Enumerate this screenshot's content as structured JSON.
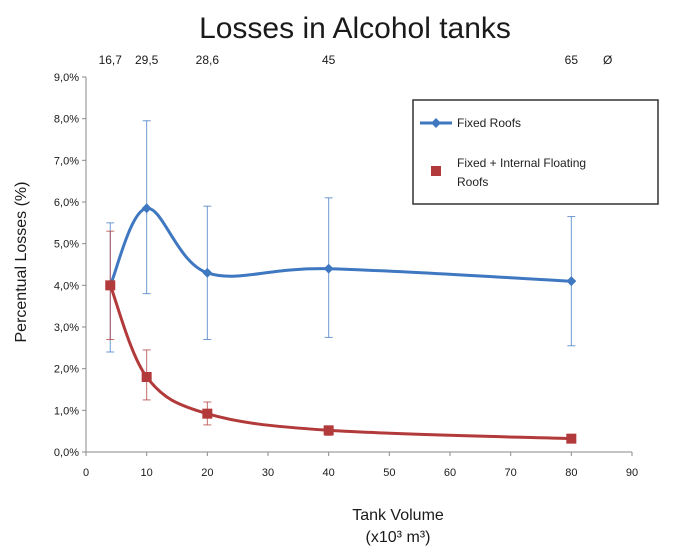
{
  "chart_data": {
    "type": "scatter",
    "title": "Losses in Alcohol tanks",
    "xlabel": [
      "Tank Volume",
      "(x10³ m³)"
    ],
    "ylabel": "Percentual Losses (%)",
    "xlim": [
      0,
      90
    ],
    "ylim": [
      0,
      9
    ],
    "x_ticks": [
      "0",
      "10",
      "20",
      "30",
      "40",
      "50",
      "60",
      "70",
      "80",
      "90"
    ],
    "y_ticks": [
      "0,0%",
      "1,0%",
      "2,0%",
      "3,0%",
      "4,0%",
      "5,0%",
      "6,0%",
      "7,0%",
      "8,0%",
      "9,0%"
    ],
    "top_labels": [
      {
        "x": 4,
        "text": "16,7"
      },
      {
        "x": 10,
        "text": "29,5"
      },
      {
        "x": 20,
        "text": "28,6"
      },
      {
        "x": 40,
        "text": "45"
      },
      {
        "x": 80,
        "text": "65"
      },
      {
        "x": 86,
        "text": "Ø"
      }
    ],
    "legend_position": "top-right",
    "series": [
      {
        "name": "Fixed Roofs",
        "color": "#3f78c1",
        "marker": "diamond",
        "line": "smooth",
        "points": [
          {
            "x": 4,
            "y": 4.0,
            "err_low": 2.4,
            "err_high": 5.5
          },
          {
            "x": 10,
            "y": 5.85,
            "err_low": 3.8,
            "err_high": 7.95
          },
          {
            "x": 20,
            "y": 4.3,
            "err_low": 2.7,
            "err_high": 5.9
          },
          {
            "x": 40,
            "y": 4.4,
            "err_low": 2.75,
            "err_high": 6.1
          },
          {
            "x": 80,
            "y": 4.1,
            "err_low": 2.55,
            "err_high": 5.65
          }
        ]
      },
      {
        "name": "Fixed + Internal Floating Roofs",
        "legend_lines": [
          "Fixed + Internal Floating",
          "Roofs"
        ],
        "color": "#b23a3a",
        "marker": "square",
        "line": "smooth",
        "points": [
          {
            "x": 4,
            "y": 4.0,
            "err_low": 2.7,
            "err_high": 5.3
          },
          {
            "x": 10,
            "y": 1.8,
            "err_low": 1.25,
            "err_high": 2.45
          },
          {
            "x": 20,
            "y": 0.92,
            "err_low": 0.65,
            "err_high": 1.2
          },
          {
            "x": 40,
            "y": 0.52,
            "err_low": 0.4,
            "err_high": 0.62
          },
          {
            "x": 80,
            "y": 0.32,
            "err_low": 0.25,
            "err_high": 0.4
          }
        ]
      }
    ]
  }
}
